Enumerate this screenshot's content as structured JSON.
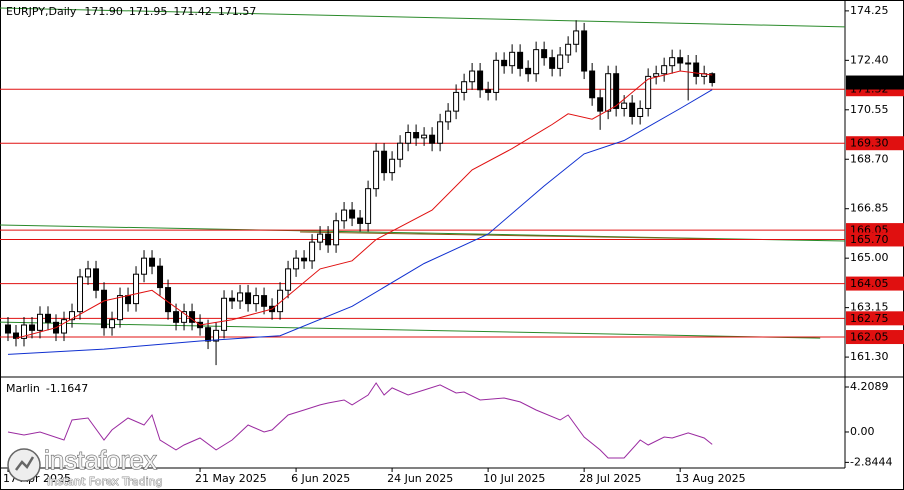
{
  "chart_data": [
    {
      "type": "candlestick",
      "symbol": "EURJPY,Daily",
      "quote": [
        {
          "value": 171.9,
          "label": "171.90"
        },
        171.95,
        171.42,
        171.57
      ],
      "xlim": [
        -1,
        104.6
      ],
      "xticks": [
        {
          "value": 0,
          "label": "17 Apr 2025"
        },
        {
          "value": 24,
          "label": "21 May 2025"
        },
        {
          "value": 36,
          "label": "6 Jun 2025"
        },
        {
          "value": 48,
          "label": "24 Jun 2025"
        },
        {
          "value": 60,
          "label": "10 Jul 2025"
        },
        {
          "value": 72,
          "label": "28 Jul 2025"
        },
        {
          "value": 84,
          "label": "13 Aug 2025"
        }
      ],
      "ylim": [
        160.63,
        174.47
      ],
      "yticks": [
        174.25,
        {
          "value": 172.4,
          "label": "172.40"
        },
        170.55,
        {
          "value": 168.7,
          "label": "168.70"
        },
        166.85,
        {
          "value": 165,
          "label": "165.00"
        },
        163.15,
        {
          "value": 161.3,
          "label": "161.30"
        }
      ],
      "up_color": "#ffffff",
      "down_color": "#000000",
      "ohlc": [
        [
          162.5,
          162.8,
          161.9,
          162.2
        ],
        [
          162.2,
          162.5,
          161.7,
          162.0
        ],
        [
          162.0,
          162.8,
          161.7,
          162.5
        ],
        [
          162.5,
          162.8,
          162.0,
          162.3
        ],
        [
          162.3,
          163.2,
          162.0,
          162.9
        ],
        [
          162.9,
          163.2,
          162.3,
          162.6
        ],
        [
          162.6,
          162.9,
          161.9,
          162.2
        ],
        [
          162.2,
          163.0,
          161.9,
          162.7
        ],
        [
          162.7,
          163.3,
          162.4,
          163.0
        ],
        [
          163.0,
          164.6,
          162.7,
          164.3
        ],
        [
          164.3,
          164.9,
          164.0,
          164.6
        ],
        [
          164.6,
          164.9,
          163.5,
          163.8
        ],
        [
          163.8,
          164.1,
          162.1,
          162.4
        ],
        [
          162.4,
          163.0,
          162.1,
          162.7
        ],
        [
          162.7,
          163.9,
          162.4,
          163.6
        ],
        [
          163.6,
          163.9,
          163.0,
          163.3
        ],
        [
          163.3,
          164.7,
          163.0,
          164.4
        ],
        [
          164.4,
          165.3,
          164.1,
          165.0
        ],
        [
          165.0,
          165.3,
          164.4,
          164.7
        ],
        [
          164.7,
          165.0,
          163.6,
          163.9
        ],
        [
          163.9,
          164.2,
          162.7,
          163.0
        ],
        [
          163.0,
          163.3,
          162.3,
          162.6
        ],
        [
          162.6,
          163.3,
          162.3,
          163.0
        ],
        [
          163.0,
          163.3,
          162.3,
          162.6
        ],
        [
          162.6,
          162.9,
          162.1,
          162.4
        ],
        [
          162.4,
          162.7,
          161.6,
          161.9
        ],
        [
          161.9,
          162.6,
          161.0,
          162.3
        ],
        [
          162.3,
          163.8,
          162.0,
          163.5
        ],
        [
          163.5,
          163.8,
          163.1,
          163.4
        ],
        [
          163.4,
          164.0,
          163.1,
          163.7
        ],
        [
          163.7,
          164.0,
          163.0,
          163.3
        ],
        [
          163.3,
          163.9,
          163.0,
          163.6
        ],
        [
          163.6,
          163.9,
          162.9,
          163.2
        ],
        [
          163.2,
          163.5,
          162.7,
          163.0
        ],
        [
          163.0,
          164.1,
          162.7,
          163.8
        ],
        [
          163.8,
          164.9,
          163.5,
          164.6
        ],
        [
          164.6,
          165.3,
          164.3,
          165.0
        ],
        [
          165.0,
          165.3,
          164.6,
          164.9
        ],
        [
          164.9,
          165.9,
          164.6,
          165.6
        ],
        [
          165.6,
          166.2,
          165.3,
          165.9
        ],
        [
          165.9,
          166.2,
          165.2,
          165.5
        ],
        [
          165.5,
          166.7,
          165.2,
          166.4
        ],
        [
          166.4,
          167.1,
          166.1,
          166.8
        ],
        [
          166.8,
          167.1,
          166.2,
          166.5
        ],
        [
          166.5,
          166.8,
          166.0,
          166.3
        ],
        [
          166.3,
          167.9,
          166.0,
          167.6
        ],
        [
          167.6,
          169.3,
          167.3,
          169.0
        ],
        [
          169.0,
          169.3,
          167.9,
          168.2
        ],
        [
          168.2,
          169.0,
          167.9,
          168.7
        ],
        [
          168.7,
          169.6,
          168.4,
          169.3
        ],
        [
          169.3,
          170.0,
          169.0,
          169.7
        ],
        [
          169.7,
          170.0,
          169.2,
          169.5
        ],
        [
          169.5,
          169.9,
          169.2,
          169.6
        ],
        [
          169.6,
          169.9,
          169.0,
          169.3
        ],
        [
          169.3,
          170.4,
          169.0,
          170.1
        ],
        [
          170.1,
          170.8,
          169.8,
          170.5
        ],
        [
          170.5,
          171.5,
          170.2,
          171.2
        ],
        [
          171.2,
          171.9,
          170.9,
          171.6
        ],
        [
          171.6,
          172.3,
          171.3,
          172.0
        ],
        [
          172.0,
          172.3,
          171.0,
          171.3
        ],
        [
          171.3,
          171.6,
          170.9,
          171.2
        ],
        [
          171.2,
          172.7,
          170.9,
          172.4
        ],
        [
          172.4,
          172.7,
          171.9,
          172.2
        ],
        [
          172.2,
          173.0,
          171.9,
          172.7
        ],
        [
          172.7,
          173.0,
          171.8,
          172.1
        ],
        [
          172.1,
          172.4,
          171.6,
          171.9
        ],
        [
          171.9,
          173.1,
          171.6,
          172.8
        ],
        [
          172.8,
          173.1,
          172.2,
          172.5
        ],
        [
          172.5,
          172.8,
          171.8,
          172.1
        ],
        [
          172.1,
          172.9,
          171.8,
          172.6
        ],
        [
          172.6,
          173.3,
          172.3,
          173.0
        ],
        [
          173.0,
          173.9,
          172.7,
          173.5
        ],
        [
          173.5,
          173.8,
          171.7,
          172.0
        ],
        [
          172.0,
          172.3,
          170.7,
          171.0
        ],
        [
          171.0,
          171.3,
          169.8,
          170.5
        ],
        [
          170.5,
          172.2,
          170.2,
          171.9
        ],
        [
          171.9,
          172.2,
          170.3,
          170.6
        ],
        [
          170.6,
          171.1,
          170.3,
          170.8
        ],
        [
          170.8,
          171.1,
          170.0,
          170.3
        ],
        [
          170.3,
          170.9,
          170.0,
          170.6
        ],
        [
          170.6,
          172.1,
          170.3,
          171.8
        ],
        [
          171.8,
          172.2,
          171.5,
          171.9
        ],
        [
          171.9,
          172.5,
          171.6,
          172.2
        ],
        [
          172.2,
          172.8,
          171.9,
          172.5
        ],
        [
          172.5,
          172.8,
          172.0,
          172.3
        ],
        [
          172.3,
          172.6,
          170.9,
          172.3
        ],
        [
          172.3,
          172.6,
          171.5,
          171.8
        ],
        [
          171.8,
          172.2,
          171.5,
          171.9
        ],
        [
          171.9,
          171.95,
          171.42,
          171.57
        ]
      ],
      "series": [
        {
          "color": "#e01010",
          "x": [
            1,
            6,
            12,
            18,
            24,
            28,
            33,
            39,
            43,
            46,
            53,
            58,
            63,
            68,
            70,
            73,
            76,
            80,
            84,
            88
          ],
          "values": [
            162.0,
            162.4,
            163.4,
            163.8,
            162.5,
            162.7,
            163.1,
            164.6,
            164.9,
            165.7,
            166.8,
            168.3,
            169.1,
            170.0,
            170.4,
            170.2,
            170.7,
            171.7,
            172.0,
            171.85
          ]
        },
        {
          "color": "#1030d0",
          "x": [
            0,
            12,
            24,
            34,
            43,
            52,
            60,
            67,
            72,
            77,
            84,
            88
          ],
          "values": [
            161.4,
            161.6,
            161.9,
            162.1,
            163.2,
            164.8,
            165.9,
            167.7,
            168.9,
            169.4,
            170.6,
            171.3
          ]
        }
      ],
      "trendlines": [
        {
          "color": "#2a8a2a",
          "x": [
            -1,
            104.6
          ],
          "values": [
            174.36,
            173.65
          ]
        },
        {
          "color": "#2a8a2a",
          "x": [
            -1,
            104.6
          ],
          "values": [
            166.24,
            165.64
          ]
        },
        {
          "color": "#2a8a2a",
          "x": [
            -1,
            101.5
          ],
          "values": [
            162.61,
            162.01
          ]
        },
        {
          "color": "#8b5a1a",
          "x": [
            36.5,
            88.4
          ],
          "values": [
            165.98,
            165.72
          ]
        }
      ],
      "level_color": "#e01010",
      "levels": [
        171.32,
        {
          "value": 169.3,
          "label": "169.30"
        },
        166.05,
        {
          "value": 165.7,
          "label": "165.70"
        },
        164.05,
        162.75,
        162.05
      ]
    },
    {
      "type": "line",
      "title": "Marlin",
      "xlim": [
        -1,
        104.6
      ],
      "ylim": [
        -3.37,
        5.05
      ],
      "yticks": [
        4.2089,
        {
          "value": 0,
          "label": "0.00"
        },
        -2.8444
      ],
      "series": [
        {
          "color": "#9a2aa0",
          "x": [
            0,
            2,
            4,
            7,
            8,
            10,
            12,
            13,
            15,
            17,
            18,
            19,
            21,
            22,
            24,
            26,
            28,
            30,
            32,
            33,
            35,
            37,
            39,
            40,
            42,
            43,
            45,
            46,
            47,
            48,
            50,
            52,
            54,
            56,
            57,
            59,
            62,
            64,
            66,
            69,
            70,
            72,
            74,
            75,
            77,
            79,
            80,
            82,
            83,
            85,
            87,
            88
          ],
          "values": [
            0.0,
            -0.28,
            0.0,
            -0.75,
            1.12,
            1.31,
            -0.75,
            0.19,
            1.31,
            0.65,
            1.59,
            -0.75,
            -1.68,
            -1.22,
            -0.56,
            -1.68,
            -0.75,
            0.65,
            0.0,
            0.19,
            1.59,
            2.06,
            2.53,
            2.71,
            2.99,
            2.53,
            3.46,
            4.58,
            3.46,
            4.12,
            3.46,
            3.93,
            4.4,
            3.65,
            3.74,
            2.99,
            3.18,
            2.81,
            2.06,
            1.12,
            1.59,
            -0.47,
            -1.68,
            -2.43,
            -2.43,
            -0.75,
            -1.22,
            -0.47,
            -0.56,
            -0.09,
            -0.56,
            -1.1647
          ]
        }
      ]
    }
  ],
  "brand": {
    "name": "instaforex",
    "tagline": "Instant Forex Trading"
  }
}
